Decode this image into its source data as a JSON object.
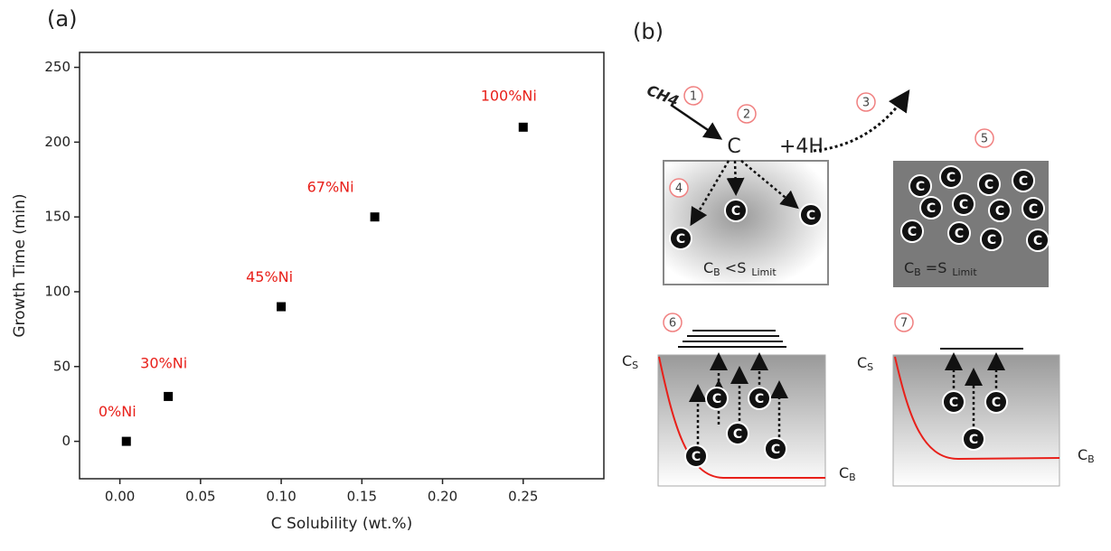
{
  "chart_data": {
    "type": "scatter",
    "panel_label": "(a)",
    "x_label": "C Solubility (wt.%)",
    "y_label": "Growth Time (min)",
    "x": [
      0.004,
      0.03,
      0.1,
      0.158,
      0.25
    ],
    "series": [
      {
        "color": "#000000",
        "values": [
          0,
          30,
          90,
          150,
          210
        ]
      }
    ],
    "annotations": [
      "0%Ni",
      "30%Ni",
      "45%Ni",
      "67%Ni",
      "100%Ni"
    ],
    "annotation_color": "#e8201a",
    "xlim": [
      -0.025,
      0.3
    ],
    "xticks": [
      {
        "value": 0,
        "label": "0.00"
      },
      {
        "value": 0.05,
        "label": "0.05"
      },
      {
        "value": 0.1,
        "label": "0.10"
      },
      {
        "value": 0.15,
        "label": "0.15"
      },
      {
        "value": 0.2,
        "label": "0.20"
      },
      {
        "value": 0.25,
        "label": "0.25"
      }
    ],
    "ylim": [
      -25,
      260
    ],
    "yticks": [
      0,
      50,
      100,
      150,
      200,
      250
    ]
  },
  "diagram": {
    "panel_label": "(b)",
    "gas": "CH4",
    "steps": [
      "1",
      "2",
      "3",
      "4",
      "5",
      "6",
      "7"
    ],
    "carbon": "C",
    "hydrogen": "+4H",
    "atom": "C",
    "cb": "C",
    "cb_sub": "B",
    "lt": " <S",
    "eq": " =S",
    "limit": "Limit",
    "cs": "C",
    "cs_sub": "S"
  }
}
